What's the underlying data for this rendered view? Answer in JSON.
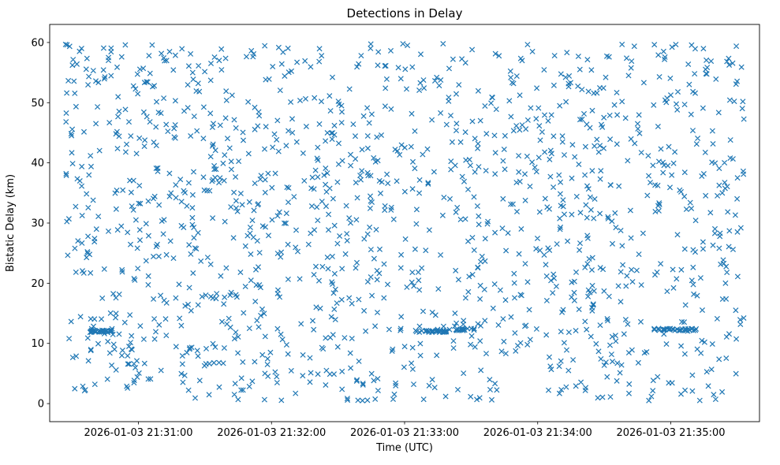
{
  "figure": {
    "background": "#ffffff"
  },
  "chart_data": {
    "type": "scatter",
    "title": "Detections in Delay",
    "xlabel": "Time (UTC)",
    "ylabel": "Bistatic Delay (km)",
    "marker": "x",
    "marker_color": "#1f77b4",
    "legend": "none",
    "grid": false,
    "x_tick_labels": [
      "2026-01-03 21:31:00",
      "2026-01-03 21:32:00",
      "2026-01-03 21:33:00",
      "2026-01-03 21:34:00",
      "2026-01-03 21:35:00"
    ],
    "x_tick_seconds": [
      60,
      120,
      180,
      240,
      300
    ],
    "x_time_base": "2026-01-03 21:30:00",
    "xlim_seconds": [
      20,
      340
    ],
    "ylim": [
      -3,
      63
    ],
    "y_ticks": [
      0,
      10,
      20,
      30,
      40,
      50,
      60
    ],
    "y_tick_labels": [
      "0",
      "10",
      "20",
      "30",
      "40",
      "50",
      "60"
    ],
    "distribution": "uniform random scatter of detections across full time and delay range",
    "n_points": 1450,
    "x_data_range_seconds": [
      27,
      333
    ],
    "y_data_range": [
      0.5,
      59.8
    ],
    "seed": 7,
    "streaks": [
      {
        "t0": 38,
        "t1": 48,
        "y": 12.0,
        "n": 26
      },
      {
        "t0": 183,
        "t1": 199,
        "y": 12.0,
        "n": 28
      },
      {
        "t0": 203,
        "t1": 212,
        "y": 12.3,
        "n": 16
      },
      {
        "t0": 292,
        "t1": 312,
        "y": 12.3,
        "n": 34
      }
    ]
  }
}
